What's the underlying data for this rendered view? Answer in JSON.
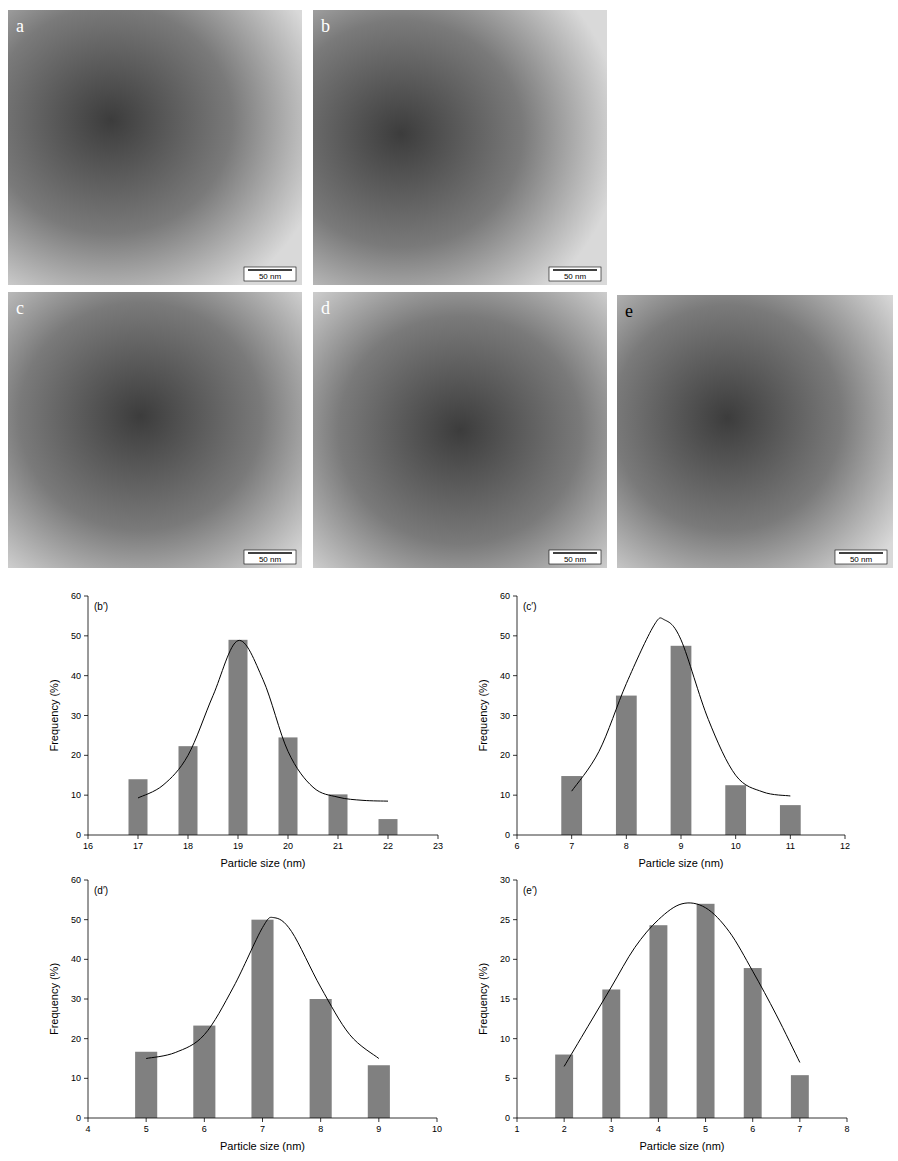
{
  "images": [
    {
      "label": "a",
      "scale_bar": "50 nm"
    },
    {
      "label": "b",
      "scale_bar": "50 nm"
    },
    {
      "label": "c",
      "scale_bar": "50 nm"
    },
    {
      "label": "d",
      "scale_bar": "50 nm"
    },
    {
      "label": "e",
      "scale_bar": "50 nm"
    }
  ],
  "chart_data": [
    {
      "type": "bar",
      "title": "(b′)",
      "x_label": "Particle size (nm)",
      "y_label": "Frequency (%)",
      "x": [
        17,
        18,
        19,
        20,
        21,
        22
      ],
      "xlim": [
        16,
        23
      ],
      "xticks": [
        16,
        17,
        18,
        19,
        20,
        21,
        22,
        23
      ],
      "ylim": [
        0,
        60
      ],
      "yticks": [
        0,
        10,
        20,
        30,
        40,
        50,
        60
      ],
      "series": [
        {
          "type": "bar",
          "color": "#808080",
          "values": [
            14,
            22.3,
            49,
            24.5,
            10.2,
            4
          ]
        },
        {
          "type": "line",
          "color": "#000000",
          "line_style": "solid",
          "x": [
            17,
            17.5,
            18,
            18.5,
            19,
            19.5,
            20,
            20.5,
            21,
            21.5,
            22
          ],
          "values": [
            9.3,
            12.5,
            20,
            35,
            48.8,
            39,
            21,
            12,
            9.5,
            8.7,
            8.5
          ]
        }
      ]
    },
    {
      "type": "bar",
      "title": "(c′)",
      "x_label": "Particle size (nm)",
      "y_label": "Frequency (%)",
      "x": [
        7,
        8,
        9,
        10,
        11
      ],
      "xlim": [
        6,
        12
      ],
      "xticks": [
        6,
        7,
        8,
        9,
        10,
        11,
        12
      ],
      "ylim": [
        0,
        60
      ],
      "yticks": [
        0,
        10,
        20,
        30,
        40,
        50,
        60
      ],
      "series": [
        {
          "type": "bar",
          "color": "#808080",
          "values": [
            14.8,
            35,
            47.5,
            12.5,
            7.5
          ]
        },
        {
          "type": "line",
          "color": "#000000",
          "line_style": "solid",
          "x": [
            7,
            7.5,
            8,
            8.5,
            8.7,
            9,
            9.5,
            10,
            10.5,
            11
          ],
          "values": [
            11,
            21,
            38,
            52.5,
            54,
            49,
            29,
            15,
            10.8,
            9.8
          ]
        }
      ]
    },
    {
      "type": "bar",
      "title": "(d′)",
      "x_label": "Particle size (nm)",
      "y_label": "Frequency (%)",
      "x": [
        5,
        6,
        7,
        8,
        9
      ],
      "xlim": [
        4,
        10
      ],
      "xticks": [
        4,
        5,
        6,
        7,
        8,
        9,
        10
      ],
      "ylim": [
        0,
        60
      ],
      "yticks": [
        0,
        10,
        20,
        30,
        40,
        50,
        60
      ],
      "series": [
        {
          "type": "bar",
          "color": "#808080",
          "values": [
            16.7,
            23.3,
            50,
            30,
            13.3
          ]
        },
        {
          "type": "line",
          "color": "#000000",
          "line_style": "solid",
          "x": [
            5,
            5.5,
            6,
            6.5,
            7,
            7.2,
            7.5,
            8,
            8.5,
            9
          ],
          "values": [
            15,
            16.5,
            21,
            33,
            48,
            50.5,
            47,
            33,
            21,
            15
          ]
        }
      ]
    },
    {
      "type": "bar",
      "title": "(e′)",
      "x_label": "Particle size (nm)",
      "y_label": "Frequency (%)",
      "x": [
        2,
        3,
        4,
        5,
        6,
        7
      ],
      "xlim": [
        1,
        8
      ],
      "xticks": [
        1,
        2,
        3,
        4,
        5,
        6,
        7,
        8
      ],
      "ylim": [
        0,
        30
      ],
      "yticks": [
        0,
        5,
        10,
        15,
        20,
        25,
        30
      ],
      "series": [
        {
          "type": "bar",
          "color": "#808080",
          "values": [
            8,
            16.2,
            24.3,
            27,
            18.9,
            5.4
          ]
        },
        {
          "type": "line",
          "color": "#000000",
          "line_style": "solid",
          "x": [
            2,
            2.5,
            3,
            3.5,
            4,
            4.5,
            5,
            5.5,
            6,
            6.5,
            7
          ],
          "values": [
            6.5,
            11.5,
            16.5,
            21.5,
            25,
            27,
            26.5,
            23.5,
            18.5,
            13,
            7
          ]
        }
      ]
    }
  ]
}
